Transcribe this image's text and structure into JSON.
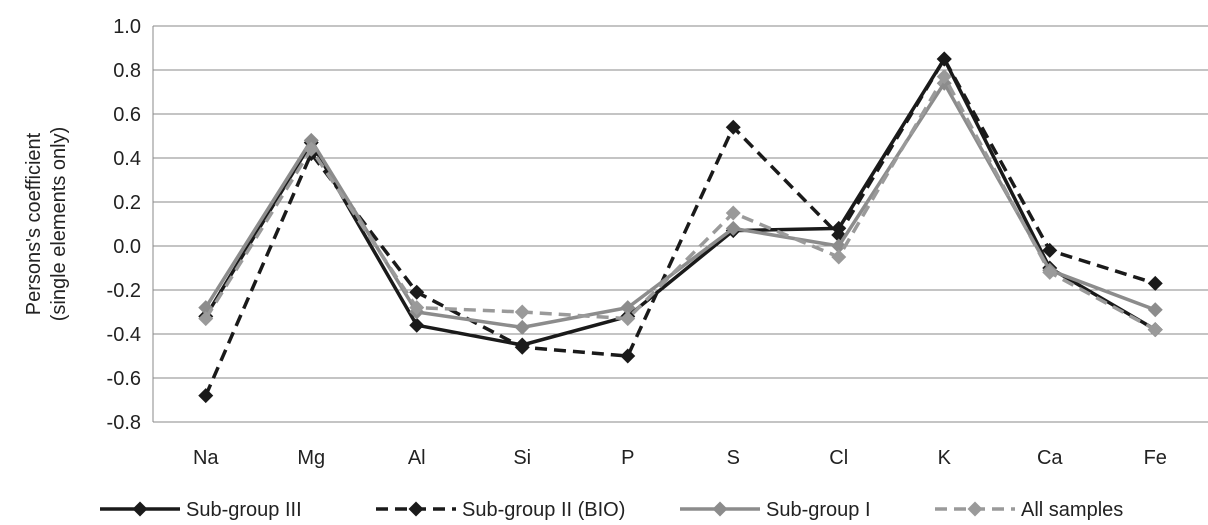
{
  "chart_data": {
    "type": "line",
    "title": "",
    "xlabel": "",
    "ylabel_lines": [
      "Persons's coefficient",
      "(single elements only)"
    ],
    "categories": [
      "Na",
      "Mg",
      "Al",
      "Si",
      "P",
      "S",
      "Cl",
      "K",
      "Ca",
      "Fe"
    ],
    "ylim": [
      -0.8,
      1.0
    ],
    "yticks": [
      "-0.8",
      "-0.6",
      "-0.4",
      "-0.2",
      "0.0",
      "0.2",
      "0.4",
      "0.6",
      "0.8",
      "1.0"
    ],
    "grid": "horizontal",
    "legend_position": "bottom",
    "series": [
      {
        "name": "Sub-group III",
        "color": "#1a1a1a",
        "dash": "solid",
        "marker": "diamond",
        "values": [
          -0.32,
          0.47,
          -0.36,
          -0.45,
          -0.32,
          0.07,
          0.08,
          0.85,
          -0.1,
          -0.38
        ]
      },
      {
        "name": "Sub-group II (BIO)",
        "color": "#1a1a1a",
        "dash": "dashed",
        "marker": "diamond",
        "values": [
          -0.68,
          0.42,
          -0.21,
          -0.46,
          -0.5,
          0.54,
          0.05,
          0.85,
          -0.02,
          -0.17
        ]
      },
      {
        "name": "Sub-group I",
        "color": "#8c8c8c",
        "dash": "solid",
        "marker": "diamond",
        "values": [
          -0.28,
          0.48,
          -0.3,
          -0.37,
          -0.28,
          0.08,
          0.0,
          0.74,
          -0.11,
          -0.29
        ]
      },
      {
        "name": "All samples",
        "color": "#9a9a9a",
        "dash": "dashed",
        "marker": "diamond",
        "values": [
          -0.33,
          0.44,
          -0.28,
          -0.3,
          -0.33,
          0.15,
          -0.05,
          0.77,
          -0.12,
          -0.38
        ]
      }
    ]
  }
}
